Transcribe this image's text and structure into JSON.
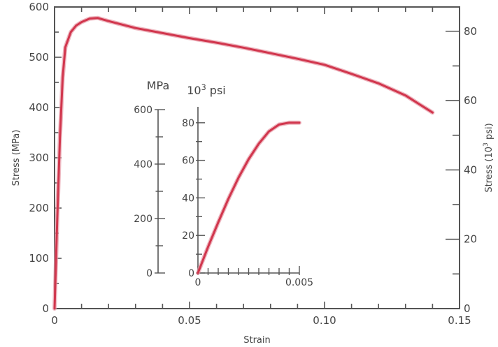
{
  "chart_data": [
    {
      "type": "line",
      "title": "",
      "xlabel": "Strain",
      "ylabel": "Stress (MPa)",
      "y2label": "Stress (10^3 psi)",
      "xlim": [
        0,
        0.15
      ],
      "ylim": [
        0,
        600
      ],
      "y2lim": [
        0,
        87
      ],
      "xticks": [
        0,
        0.05,
        0.1,
        0.15
      ],
      "xtick_labels": [
        "0",
        "0.05",
        "0.10",
        "0.15"
      ],
      "yticks": [
        0,
        100,
        200,
        300,
        400,
        500,
        600
      ],
      "ytick_labels": [
        "0",
        "100",
        "200",
        "300",
        "400",
        "500",
        "600"
      ],
      "y2ticks": [
        0,
        20,
        40,
        60,
        80
      ],
      "y2tick_labels": [
        "0",
        "20",
        "40",
        "60",
        "80"
      ],
      "grid": false,
      "series": [
        {
          "color": "#d1364d",
          "x": [
            0,
            0.001,
            0.002,
            0.003,
            0.004,
            0.006,
            0.008,
            0.01,
            0.013,
            0.016,
            0.02,
            0.03,
            0.04,
            0.05,
            0.06,
            0.07,
            0.08,
            0.09,
            0.1,
            0.11,
            0.12,
            0.13,
            0.135,
            0.14
          ],
          "y": [
            0,
            180,
            340,
            460,
            520,
            550,
            563,
            570,
            577,
            578,
            572,
            558,
            548,
            538,
            529,
            519,
            508,
            497,
            485,
            467,
            448,
            424,
            407,
            390
          ]
        }
      ]
    },
    {
      "type": "line",
      "title": "",
      "xlabel": "",
      "ylabel": "MPa",
      "y2label": "10^3 psi",
      "xlim": [
        0,
        0.005
      ],
      "ylim": [
        0,
        600
      ],
      "y2lim": [
        0,
        87
      ],
      "xticks": [
        0,
        0.005
      ],
      "xtick_labels": [
        "0",
        "0.005"
      ],
      "yticks": [
        0,
        200,
        400,
        600
      ],
      "ytick_labels": [
        "0",
        "200",
        "400",
        "600"
      ],
      "y2ticks": [
        0,
        20,
        40,
        60,
        80
      ],
      "y2tick_labels": [
        "0",
        "20",
        "40",
        "60",
        "80"
      ],
      "grid": false,
      "series": [
        {
          "color": "#d1364d",
          "x": [
            0,
            0.0005,
            0.001,
            0.0015,
            0.002,
            0.0025,
            0.003,
            0.0035,
            0.004,
            0.0045,
            0.005
          ],
          "y": [
            0,
            96,
            186,
            272,
            350,
            418,
            475,
            520,
            545,
            552,
            552
          ]
        }
      ]
    }
  ]
}
